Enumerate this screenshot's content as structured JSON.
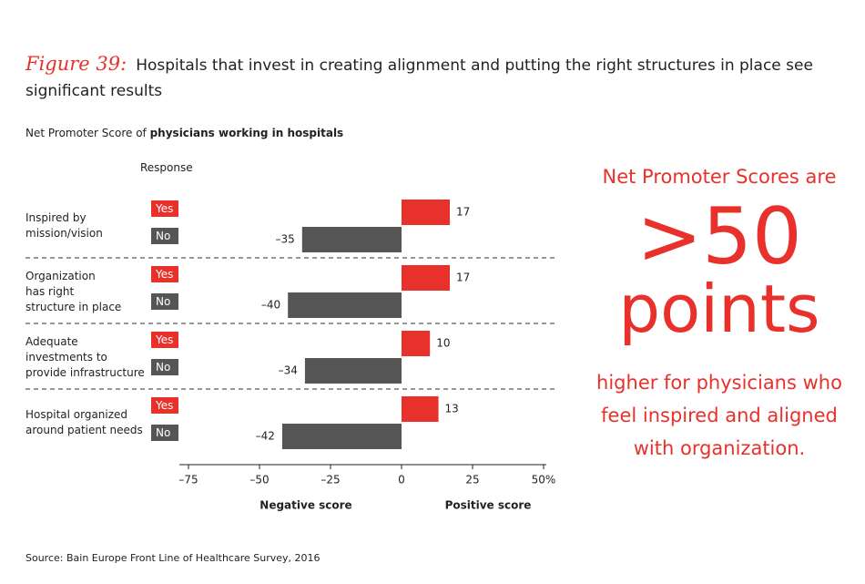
{
  "figure_label": "Figure 39:",
  "title": "Hospitals that invest in creating alignment and putting the right structures in place see significant results",
  "chart_data": {
    "type": "bar",
    "subtitle_prefix": "Net Promoter Score of ",
    "subtitle_bold": "physicians working in hospitals",
    "response_label": "Response",
    "categories": [
      "Inspired by\nmission/vision",
      "Organization\nhas right\nstructure in place",
      "Adequate\ninvestments to\nprovide infrastructure",
      "Hospital organized\naround patient needs"
    ],
    "series": [
      {
        "name": "Yes",
        "color": "#e8312a",
        "values": [
          17,
          17,
          10,
          13
        ]
      },
      {
        "name": "No",
        "color": "#555555",
        "values": [
          -35,
          -40,
          -34,
          -42
        ],
        "value_labels": [
          "–35",
          "–40",
          "–34",
          "–42"
        ]
      }
    ],
    "xlim": [
      -75,
      50
    ],
    "xticks": [
      {
        "value": -75,
        "label": "–75"
      },
      {
        "value": -50,
        "label": "–50"
      },
      {
        "value": -25,
        "label": "–25"
      },
      0,
      25,
      {
        "value": 50,
        "label": "50%"
      }
    ],
    "negative_label": "Negative score",
    "positive_label": "Positive score"
  },
  "callout": {
    "line1": "Net Promoter Scores are",
    "big1": ">50",
    "big2": "points",
    "rest": "higher for physicians who\nfeel inspired and aligned\nwith organization."
  },
  "source": "Source: Bain Europe Front Line of Healthcare Survey, 2016"
}
